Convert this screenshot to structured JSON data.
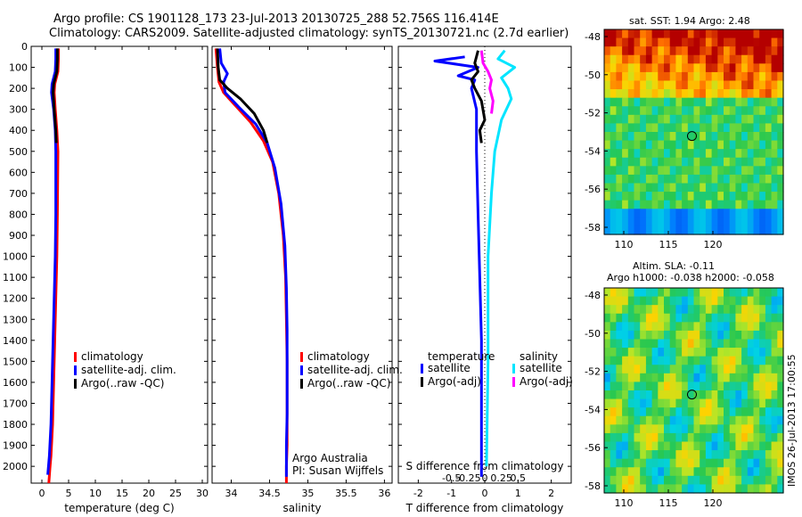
{
  "header": {
    "line1": "Argo profile: CS 1901128_173 23-Jul-2013 20130725_288 52.756S 116.414E",
    "line2": "Climatology: CARS2009. Satellite-adjusted climatology: synTS_20130721.nc (2.7d earlier)"
  },
  "colors": {
    "climatology": "#ff0000",
    "satellite": "#0000ff",
    "argo": "#000000",
    "sal_satellite": "#00e5ff",
    "sal_argo": "#ff00ff"
  },
  "chart_data": [
    {
      "type": "line",
      "panel": "temperature",
      "xlabel": "temperature (deg C)",
      "ylabel": "",
      "xlim": [
        -2,
        31
      ],
      "ylim": [
        2080,
        0
      ],
      "xticks": [
        0,
        5,
        10,
        15,
        20,
        25,
        30
      ],
      "yticks": [
        0,
        100,
        200,
        300,
        400,
        500,
        600,
        700,
        800,
        900,
        1000,
        1100,
        1200,
        1300,
        1400,
        1500,
        1600,
        1700,
        1800,
        1900,
        2000
      ],
      "series": [
        {
          "name": "climatology",
          "color": "#ff0000",
          "x": [
            3.1,
            3.1,
            3.0,
            2.4,
            2.3,
            2.5,
            2.8,
            3.0,
            2.9,
            2.8,
            2.6,
            2.4,
            2.2,
            2.0,
            1.7,
            1.5,
            1.3
          ],
          "y": [
            10,
            60,
            120,
            180,
            220,
            300,
            400,
            500,
            800,
            1000,
            1200,
            1400,
            1600,
            1800,
            1950,
            2010,
            2080
          ]
        },
        {
          "name": "satellite-adj. clim.",
          "color": "#0000ff",
          "x": [
            2.6,
            2.6,
            2.5,
            1.9,
            1.8,
            2.2,
            2.5,
            2.6,
            2.6,
            2.5,
            2.3,
            2.1,
            1.9,
            1.7,
            1.4,
            1.2,
            1.1
          ],
          "y": [
            10,
            60,
            120,
            180,
            220,
            300,
            400,
            500,
            800,
            1000,
            1200,
            1400,
            1600,
            1800,
            1950,
            2010,
            2040
          ]
        },
        {
          "name": "Argo(..raw -QC)",
          "color": "#000000",
          "x": [
            2.9,
            2.9,
            2.8,
            2.2,
            2.1,
            2.3,
            2.6,
            2.7
          ],
          "y": [
            10,
            60,
            120,
            180,
            220,
            300,
            400,
            460
          ]
        }
      ],
      "legend": [
        "climatology",
        "satellite-adj. clim.",
        "Argo(..raw -QC)"
      ]
    },
    {
      "type": "line",
      "panel": "salinity",
      "xlabel": "salinity",
      "ylabel": "",
      "xlim": [
        33.75,
        36.1
      ],
      "ylim": [
        2080,
        0
      ],
      "xticks": [
        34,
        34.5,
        35,
        35.5,
        36
      ],
      "xticklabels": [
        "34",
        "34.5",
        "35",
        "35.5",
        "36"
      ],
      "series": [
        {
          "name": "climatology",
          "color": "#ff0000",
          "x": [
            33.8,
            33.82,
            33.84,
            33.9,
            34.05,
            34.25,
            34.42,
            34.54,
            34.62,
            34.68,
            34.71,
            34.72,
            34.73,
            34.73,
            34.73,
            34.72,
            34.72
          ],
          "y": [
            10,
            100,
            170,
            220,
            280,
            360,
            450,
            550,
            700,
            900,
            1100,
            1300,
            1500,
            1700,
            1900,
            2000,
            2080
          ]
        },
        {
          "name": "satellite-adj. clim.",
          "color": "#0000ff",
          "x": [
            33.85,
            33.87,
            33.95,
            33.9,
            33.92,
            34.1,
            34.32,
            34.47,
            34.57,
            34.65,
            34.7,
            34.72,
            34.73,
            34.73,
            34.73,
            34.72,
            34.72
          ],
          "y": [
            10,
            80,
            130,
            170,
            220,
            290,
            370,
            460,
            580,
            750,
            950,
            1150,
            1350,
            1550,
            1750,
            1900,
            2050
          ]
        },
        {
          "name": "Argo(..raw -QC)",
          "color": "#000000",
          "x": [
            33.82,
            33.83,
            33.85,
            33.95,
            34.12,
            34.3,
            34.42,
            34.47
          ],
          "y": [
            10,
            100,
            160,
            200,
            250,
            320,
            400,
            460
          ]
        }
      ],
      "legend": [
        "climatology",
        "satellite-adj. clim.",
        "Argo(..raw -QC)"
      ],
      "annotations": [
        "Argo Australia",
        "PI: Susan Wijffels"
      ]
    },
    {
      "type": "line",
      "panel": "difference",
      "xlabel": "T difference from climatology",
      "xlabel2": "S difference from climatology",
      "xlim": [
        -2.6,
        2.6
      ],
      "ylim": [
        2080,
        0
      ],
      "xticks": [
        -2,
        -1,
        0,
        1,
        2
      ],
      "s_xticks": [
        "-0.5",
        "-0.25",
        "0",
        "0.25",
        "0.5"
      ],
      "series": [
        {
          "name": "temperature satellite",
          "color": "#0000ff",
          "x": [
            -0.6,
            -1.5,
            -0.2,
            -0.8,
            -0.3,
            -0.4,
            -0.25,
            -0.25,
            -0.2,
            -0.15,
            -0.1,
            -0.1,
            -0.1
          ],
          "y": [
            50,
            70,
            100,
            140,
            160,
            200,
            300,
            500,
            800,
            1100,
            1400,
            1700,
            2050
          ]
        },
        {
          "name": "temperature Argo(-adj)",
          "color": "#000000",
          "x": [
            -0.2,
            -0.3,
            -0.2,
            -0.4,
            -0.3,
            -0.1,
            0.0,
            -0.15,
            -0.1
          ],
          "y": [
            20,
            80,
            120,
            160,
            200,
            260,
            350,
            400,
            460
          ]
        },
        {
          "name": "salinity satellite",
          "color": "#00e5ff",
          "x": [
            0.6,
            0.4,
            0.9,
            0.5,
            0.7,
            0.8,
            0.5,
            0.3,
            0.2,
            0.1,
            0.1,
            0.05
          ],
          "y": [
            20,
            60,
            100,
            150,
            200,
            250,
            350,
            500,
            700,
            1000,
            1500,
            2000
          ]
        },
        {
          "name": "salinity Argo(-adj)",
          "color": "#ff00ff",
          "x": [
            -0.1,
            -0.05,
            0.1,
            0.2,
            0.15,
            0.25,
            0.2
          ],
          "y": [
            20,
            80,
            120,
            160,
            200,
            260,
            320
          ]
        }
      ],
      "legend_temperature_title": "temperature",
      "legend_salinity_title": "salinity",
      "legend_temperature": [
        "satellite",
        "Argo(-adj)"
      ],
      "legend_salinity": [
        "satellite",
        "Argo(-adj)"
      ]
    }
  ],
  "map_top": {
    "title": "sat. SST: 1.94 Argo: 2.48",
    "yticks": [
      "-48",
      "-50",
      "-52",
      "-54",
      "-56",
      "-58"
    ],
    "xticks": [
      "110",
      "115",
      "120"
    ]
  },
  "map_bottom": {
    "title1": "Altim. SLA: -0.11",
    "title2": "Argo h1000: -0.038 h2000: -0.058",
    "yticks": [
      "-48",
      "-50",
      "-52",
      "-54",
      "-56",
      "-58"
    ],
    "xticks": [
      "110",
      "115",
      "120"
    ],
    "stamp": "IMOS 26-Jul-2013 17:00:55"
  }
}
